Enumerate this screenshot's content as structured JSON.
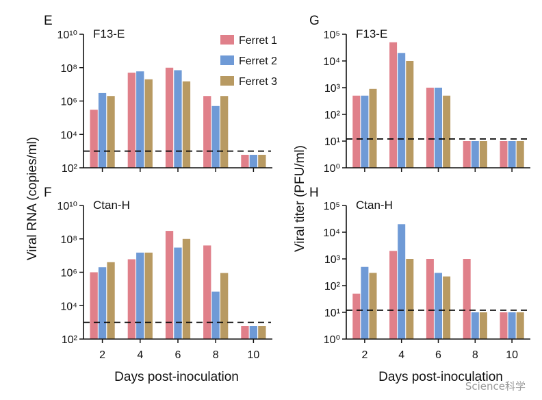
{
  "figure": {
    "left_ylabel": "Viral RNA (copies/ml)",
    "right_ylabel": "Viral titer (PFU/ml)",
    "xlabel": "Days post-inoculation",
    "watermark": "Science科学"
  },
  "colors": {
    "Ferret 1": "#e0808a",
    "Ferret 2": "#6f9ad6",
    "Ferret 3": "#b89a62",
    "axis": "#111111",
    "threshold": "#000000"
  },
  "chart_data": [
    {
      "panel": "E",
      "label": "F13-E",
      "type": "bar",
      "yscale": "log",
      "ylim": [
        100,
        10000000000
      ],
      "yticks": [
        100,
        10000,
        1000000,
        100000000,
        10000000000
      ],
      "ytick_labels": [
        "10²",
        "10⁴",
        "10⁶",
        "10⁸",
        "10¹⁰"
      ],
      "categories": [
        "2",
        "4",
        "6",
        "8",
        "10"
      ],
      "threshold": 1000,
      "show_xlabels": false,
      "series": [
        {
          "name": "Ferret 1",
          "values": [
            300000,
            50000000,
            100000000,
            2000000,
            600
          ]
        },
        {
          "name": "Ferret 2",
          "values": [
            3000000,
            60000000,
            70000000,
            500000,
            600
          ]
        },
        {
          "name": "Ferret 3",
          "values": [
            2000000,
            20000000,
            15000000,
            2000000,
            600
          ]
        }
      ]
    },
    {
      "panel": "G",
      "label": "F13-E",
      "type": "bar",
      "yscale": "log",
      "ylim": [
        1,
        100000
      ],
      "yticks": [
        1,
        10,
        100,
        1000,
        10000,
        100000
      ],
      "ytick_labels": [
        "10⁰",
        "10¹",
        "10²",
        "10³",
        "10⁴",
        "10⁵"
      ],
      "categories": [
        "2",
        "4",
        "6",
        "8",
        "10"
      ],
      "threshold": 12,
      "show_xlabels": false,
      "series": [
        {
          "name": "Ferret 1",
          "values": [
            500,
            50000,
            1000,
            10,
            10
          ]
        },
        {
          "name": "Ferret 2",
          "values": [
            500,
            20000,
            1000,
            10,
            10
          ]
        },
        {
          "name": "Ferret 3",
          "values": [
            900,
            10000,
            500,
            10,
            10
          ]
        }
      ]
    },
    {
      "panel": "F",
      "label": "Ctan-H",
      "type": "bar",
      "yscale": "log",
      "ylim": [
        100,
        10000000000
      ],
      "yticks": [
        100,
        10000,
        1000000,
        100000000,
        10000000000
      ],
      "ytick_labels": [
        "10²",
        "10⁴",
        "10⁶",
        "10⁸",
        "10¹⁰"
      ],
      "categories": [
        "2",
        "4",
        "6",
        "8",
        "10"
      ],
      "threshold": 1000,
      "show_xlabels": true,
      "series": [
        {
          "name": "Ferret 1",
          "values": [
            1000000,
            6000000,
            300000000,
            40000000,
            600
          ]
        },
        {
          "name": "Ferret 2",
          "values": [
            2000000,
            15000000,
            30000000,
            70000,
            600
          ]
        },
        {
          "name": "Ferret 3",
          "values": [
            4000000,
            15000000,
            100000000,
            900000,
            600
          ]
        }
      ]
    },
    {
      "panel": "H",
      "label": "Ctan-H",
      "type": "bar",
      "yscale": "log",
      "ylim": [
        1,
        100000
      ],
      "yticks": [
        1,
        10,
        100,
        1000,
        10000,
        100000
      ],
      "ytick_labels": [
        "10⁰",
        "10¹",
        "10²",
        "10³",
        "10⁴",
        "10⁵"
      ],
      "categories": [
        "2",
        "4",
        "6",
        "8",
        "10"
      ],
      "threshold": 12,
      "show_xlabels": true,
      "series": [
        {
          "name": "Ferret 1",
          "values": [
            50,
            2000,
            1000,
            1000,
            10
          ]
        },
        {
          "name": "Ferret 2",
          "values": [
            500,
            20000,
            300,
            10,
            10
          ]
        },
        {
          "name": "Ferret 3",
          "values": [
            300,
            1000,
            220,
            10,
            10
          ]
        }
      ]
    }
  ]
}
